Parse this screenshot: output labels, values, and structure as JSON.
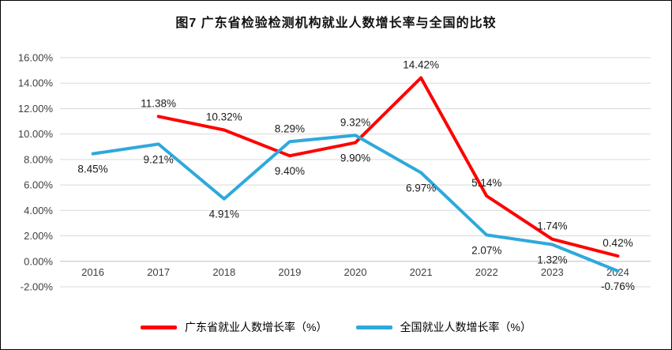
{
  "title": "图7  广东省检验检测机构就业人数增长率与全国的比较",
  "chart_data": {
    "type": "line",
    "x": [
      "2016",
      "2017",
      "2018",
      "2019",
      "2020",
      "2021",
      "2022",
      "2023",
      "2024"
    ],
    "series": [
      {
        "key": "guangdong",
        "name": "广东省就业人数增长率（%）",
        "color": "#FF0000",
        "label_position": "above",
        "values": [
          null,
          11.38,
          10.32,
          8.29,
          9.32,
          14.42,
          5.14,
          1.74,
          0.42
        ]
      },
      {
        "key": "national",
        "name": "全国就业人数增长率（%）",
        "color": "#2EA9DB",
        "label_position": "below",
        "values": [
          8.45,
          9.21,
          4.91,
          9.4,
          9.9,
          6.97,
          2.07,
          1.32,
          -0.76
        ]
      }
    ],
    "ylim": [
      -2,
      16
    ],
    "y_tick_step": 2,
    "y_ticks": [
      "16.00%",
      "14.00%",
      "12.00%",
      "10.00%",
      "8.00%",
      "6.00%",
      "4.00%",
      "2.00%",
      "0.00%",
      "-2.00%"
    ],
    "grid": true,
    "legend_position": "bottom"
  },
  "style": {
    "grid_color": "#D9D9D9",
    "zero_axis_color": "#BFBFBF",
    "tick_color": "#404040",
    "label_color": "#1a1a1a"
  }
}
